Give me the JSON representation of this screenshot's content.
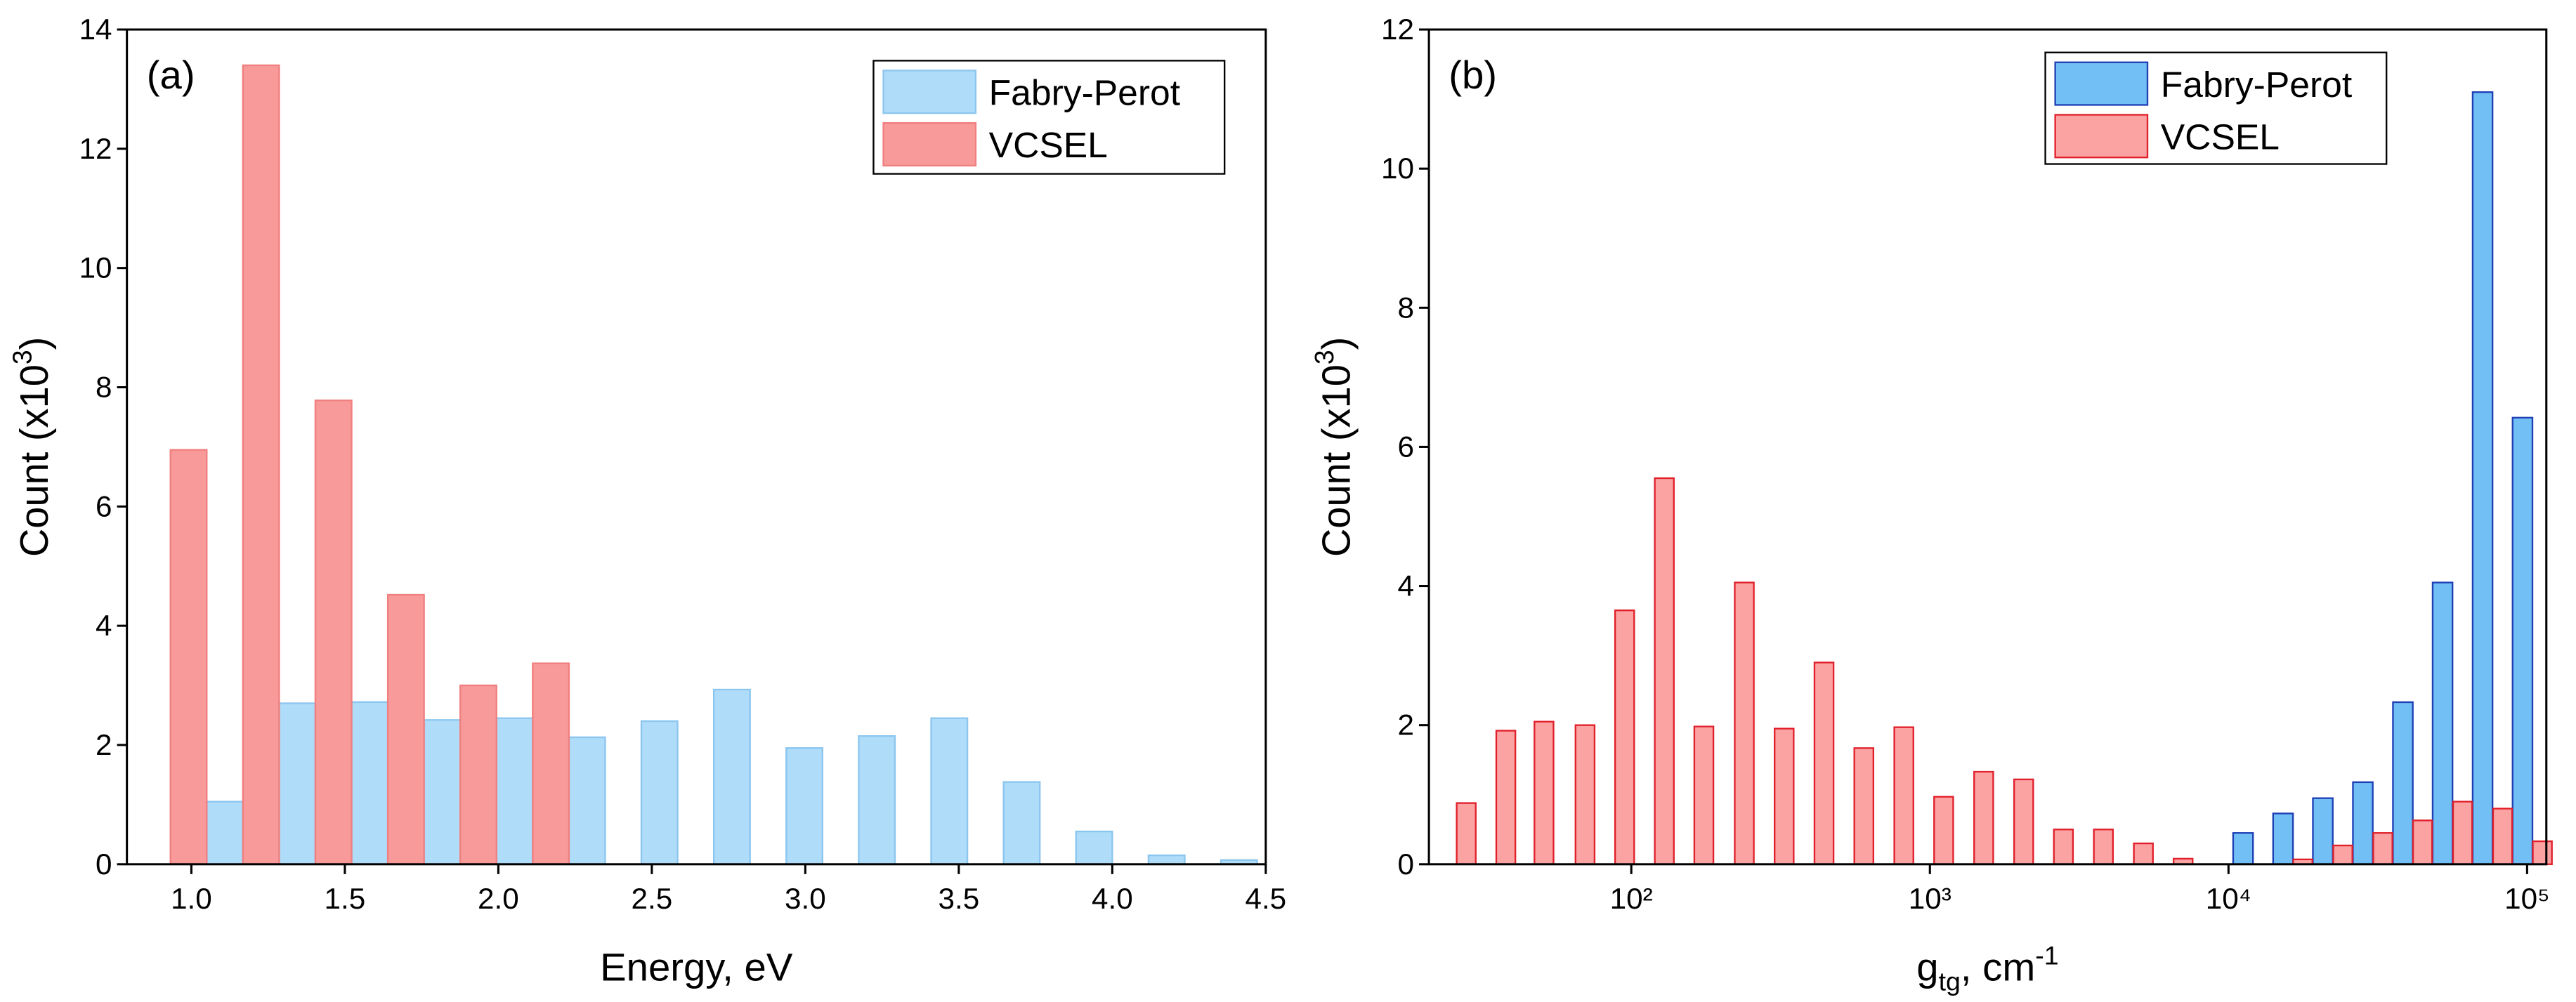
{
  "chart_data": [
    {
      "type": "bar",
      "panel": "(a)",
      "xlabel": "Energy, eV",
      "ylabel": [
        "Count (x10",
        "3",
        ")"
      ],
      "xlim": [
        0.79,
        4.5
      ],
      "xticks": [
        {
          "value": 1,
          "label": "1.0"
        },
        1.5,
        {
          "value": 2,
          "label": "2.0"
        },
        2.5,
        {
          "value": 3,
          "label": "3.0"
        },
        3.5,
        {
          "value": 4,
          "label": "4.0"
        },
        4.5
      ],
      "ylim": [
        0,
        14
      ],
      "yticks": [
        0,
        2,
        4,
        6,
        8,
        10,
        12,
        14
      ],
      "series": [
        {
          "name": "Fabry-Perot",
          "color": "#aedcf9",
          "edge": "#8cc6ef",
          "x": [
            1.109,
            1.345,
            1.581,
            1.817,
            2.053,
            2.289,
            2.525,
            2.761,
            2.997,
            3.233,
            3.469,
            3.705,
            3.941,
            4.177,
            4.413
          ],
          "values": [
            1.05,
            2.7,
            2.72,
            2.42,
            2.45,
            2.13,
            2.4,
            2.93,
            1.95,
            2.15,
            2.45,
            1.38,
            0.55,
            0.15,
            0.07
          ]
        },
        {
          "name": "VCSEL",
          "color": "#f99a9a",
          "edge": "#f07f7f",
          "x": [
            0.991,
            1.227,
            1.463,
            1.699,
            1.935,
            2.171
          ],
          "values": [
            6.95,
            13.4,
            7.78,
            4.52,
            3.0,
            3.37
          ]
        }
      ]
    },
    {
      "type": "bar",
      "panel": "(b)",
      "xscale": "log",
      "xlabel": [
        "g",
        "tg",
        ", cm",
        "-1"
      ],
      "ylabel": [
        "Count  (x10",
        "3",
        ")"
      ],
      "xlim": [
        21,
        116000
      ],
      "xticks": [
        {
          "value": 100,
          "label": "10²"
        },
        {
          "value": 1000,
          "label": "10³"
        },
        {
          "value": 10000,
          "label": "10⁴"
        },
        {
          "value": 100000,
          "label": "10⁵"
        }
      ],
      "ylim": [
        0,
        12
      ],
      "yticks": [
        0,
        2,
        4,
        6,
        8,
        10,
        12
      ],
      "series": [
        {
          "name": "Fabry-Perot",
          "color": "#72bff5",
          "edge": "#1f3fb5",
          "x": [
            11190,
            15230,
            20700,
            28180,
            38370,
            52120,
            70960,
            96550
          ],
          "values": [
            0.45,
            0.73,
            0.95,
            1.18,
            2.33,
            4.05,
            11.1,
            6.42
          ]
        },
        {
          "name": "VCSEL",
          "color": "#fba3a3",
          "edge": "#e0202a",
          "x": [
            28,
            38,
            51,
            70,
            95,
            129,
            175,
            239,
            325,
            442,
            601,
            818,
            1112,
            1514,
            2061,
            2800,
            3811,
            5188,
            7047,
            17740,
            24150,
            32880,
            44670,
            60810,
            82790,
            112500
          ],
          "values": [
            0.88,
            1.92,
            2.05,
            2.0,
            3.65,
            5.55,
            1.98,
            4.05,
            1.95,
            2.9,
            1.67,
            1.97,
            0.97,
            1.33,
            1.22,
            0.5,
            0.5,
            0.3,
            0.08,
            0.07,
            0.27,
            0.45,
            0.63,
            0.9,
            0.8,
            0.33
          ]
        }
      ]
    }
  ]
}
